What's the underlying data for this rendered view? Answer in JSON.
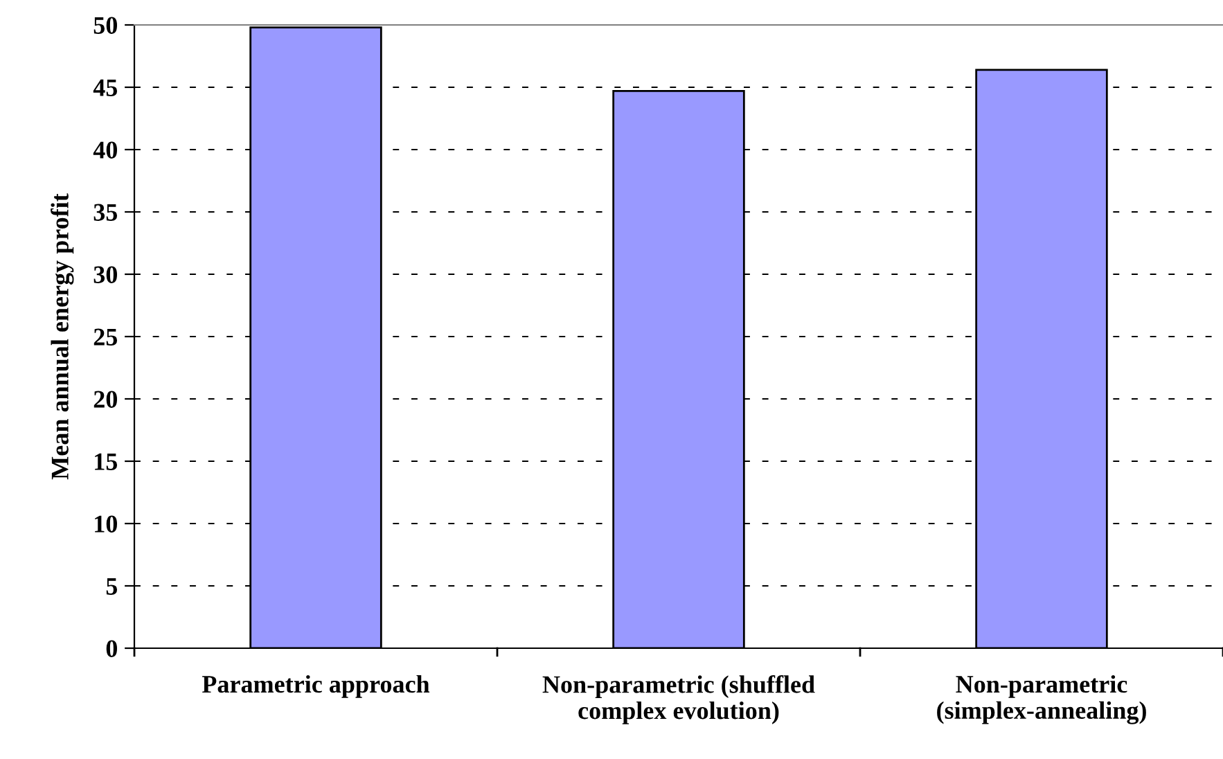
{
  "chart_data": {
    "type": "bar",
    "ylabel": "Mean annual energy profit",
    "categories": [
      "Parametric approach",
      "Non-parametric (shuffled\ncomplex evolution)",
      "Non-parametric\n(simplex-annealing)"
    ],
    "values": [
      49.8,
      44.7,
      46.4
    ],
    "color": "#9999ff",
    "ylim": [
      0,
      50
    ],
    "yticks": [
      0,
      5,
      10,
      15,
      20,
      25,
      30,
      35,
      40,
      45,
      50
    ],
    "grid": "y"
  }
}
